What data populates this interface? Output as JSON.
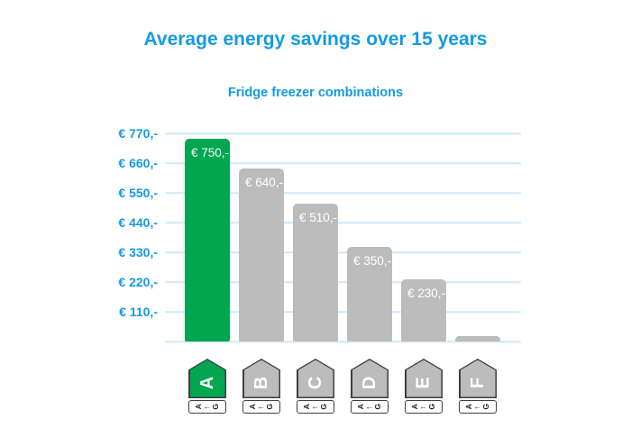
{
  "colors": {
    "accent_blue": "#149ae4",
    "gridline": "#cfe9fa",
    "green": "#00a650",
    "gray": "#bcbcbc",
    "icon_outline": "#3f3f3f",
    "bar_label_text": "#ffffff"
  },
  "chart_data": {
    "type": "bar",
    "title": "Average energy savings over 15 years",
    "subtitle": "Fridge freezer combinations",
    "categories": [
      "A",
      "B",
      "C",
      "D",
      "E",
      "F"
    ],
    "values": [
      750,
      640,
      510,
      350,
      230,
      20
    ],
    "bar_labels": [
      "€ 750,-",
      "€ 640,-",
      "€ 510,-",
      "€ 350,-",
      "€ 230,-",
      ""
    ],
    "bar_colors": [
      "#00a650",
      "#bcbcbc",
      "#bcbcbc",
      "#bcbcbc",
      "#bcbcbc",
      "#bcbcbc"
    ],
    "y_ticks": [
      {
        "value": 770,
        "label": "€ 770,-"
      },
      {
        "value": 660,
        "label": "€ 660,-"
      },
      {
        "value": 550,
        "label": "€ 550,-"
      },
      {
        "value": 440,
        "label": "€ 440,-"
      },
      {
        "value": 330,
        "label": "€ 330,-"
      },
      {
        "value": 220,
        "label": "€ 220,-"
      },
      {
        "value": 110,
        "label": "€ 110,-"
      },
      {
        "value": 0,
        "label": ""
      }
    ],
    "ylim": [
      0,
      790
    ],
    "grid": true,
    "legend": false,
    "xlabel": "",
    "ylabel": "",
    "icon_scale": "A←G"
  }
}
